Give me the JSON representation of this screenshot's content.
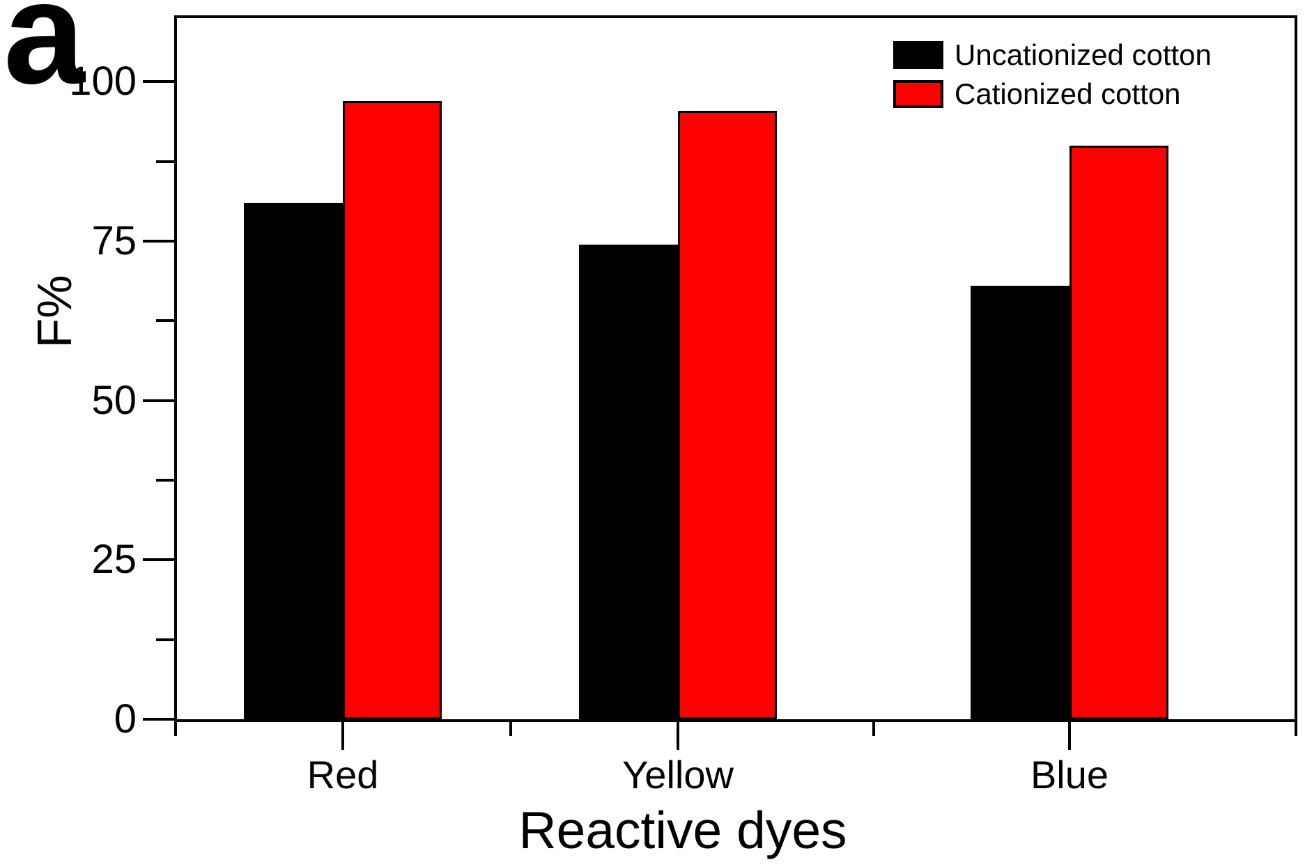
{
  "panel_label": "a",
  "chart_data": {
    "type": "bar",
    "title": "",
    "categories": [
      "Red",
      "Yellow",
      "Blue"
    ],
    "series": [
      {
        "name": "Uncationized cotton",
        "color": "#000000",
        "values": [
          81,
          74.5,
          68
        ]
      },
      {
        "name": "Cationized cotton",
        "color": "#ff0000",
        "values": [
          97,
          95.5,
          90
        ]
      }
    ],
    "xlabel": "Reactive dyes",
    "ylabel": "F%",
    "ylim": [
      0,
      110
    ],
    "yticks": [
      0,
      25,
      50,
      75,
      100
    ],
    "y_minor_ticks": [
      12.5,
      37.5,
      62.5,
      87.5
    ],
    "legend_position": "top-right",
    "grid": false,
    "bar_outline_color": "#000000",
    "axis_color": "#000000",
    "background_color": "#ffffff"
  }
}
